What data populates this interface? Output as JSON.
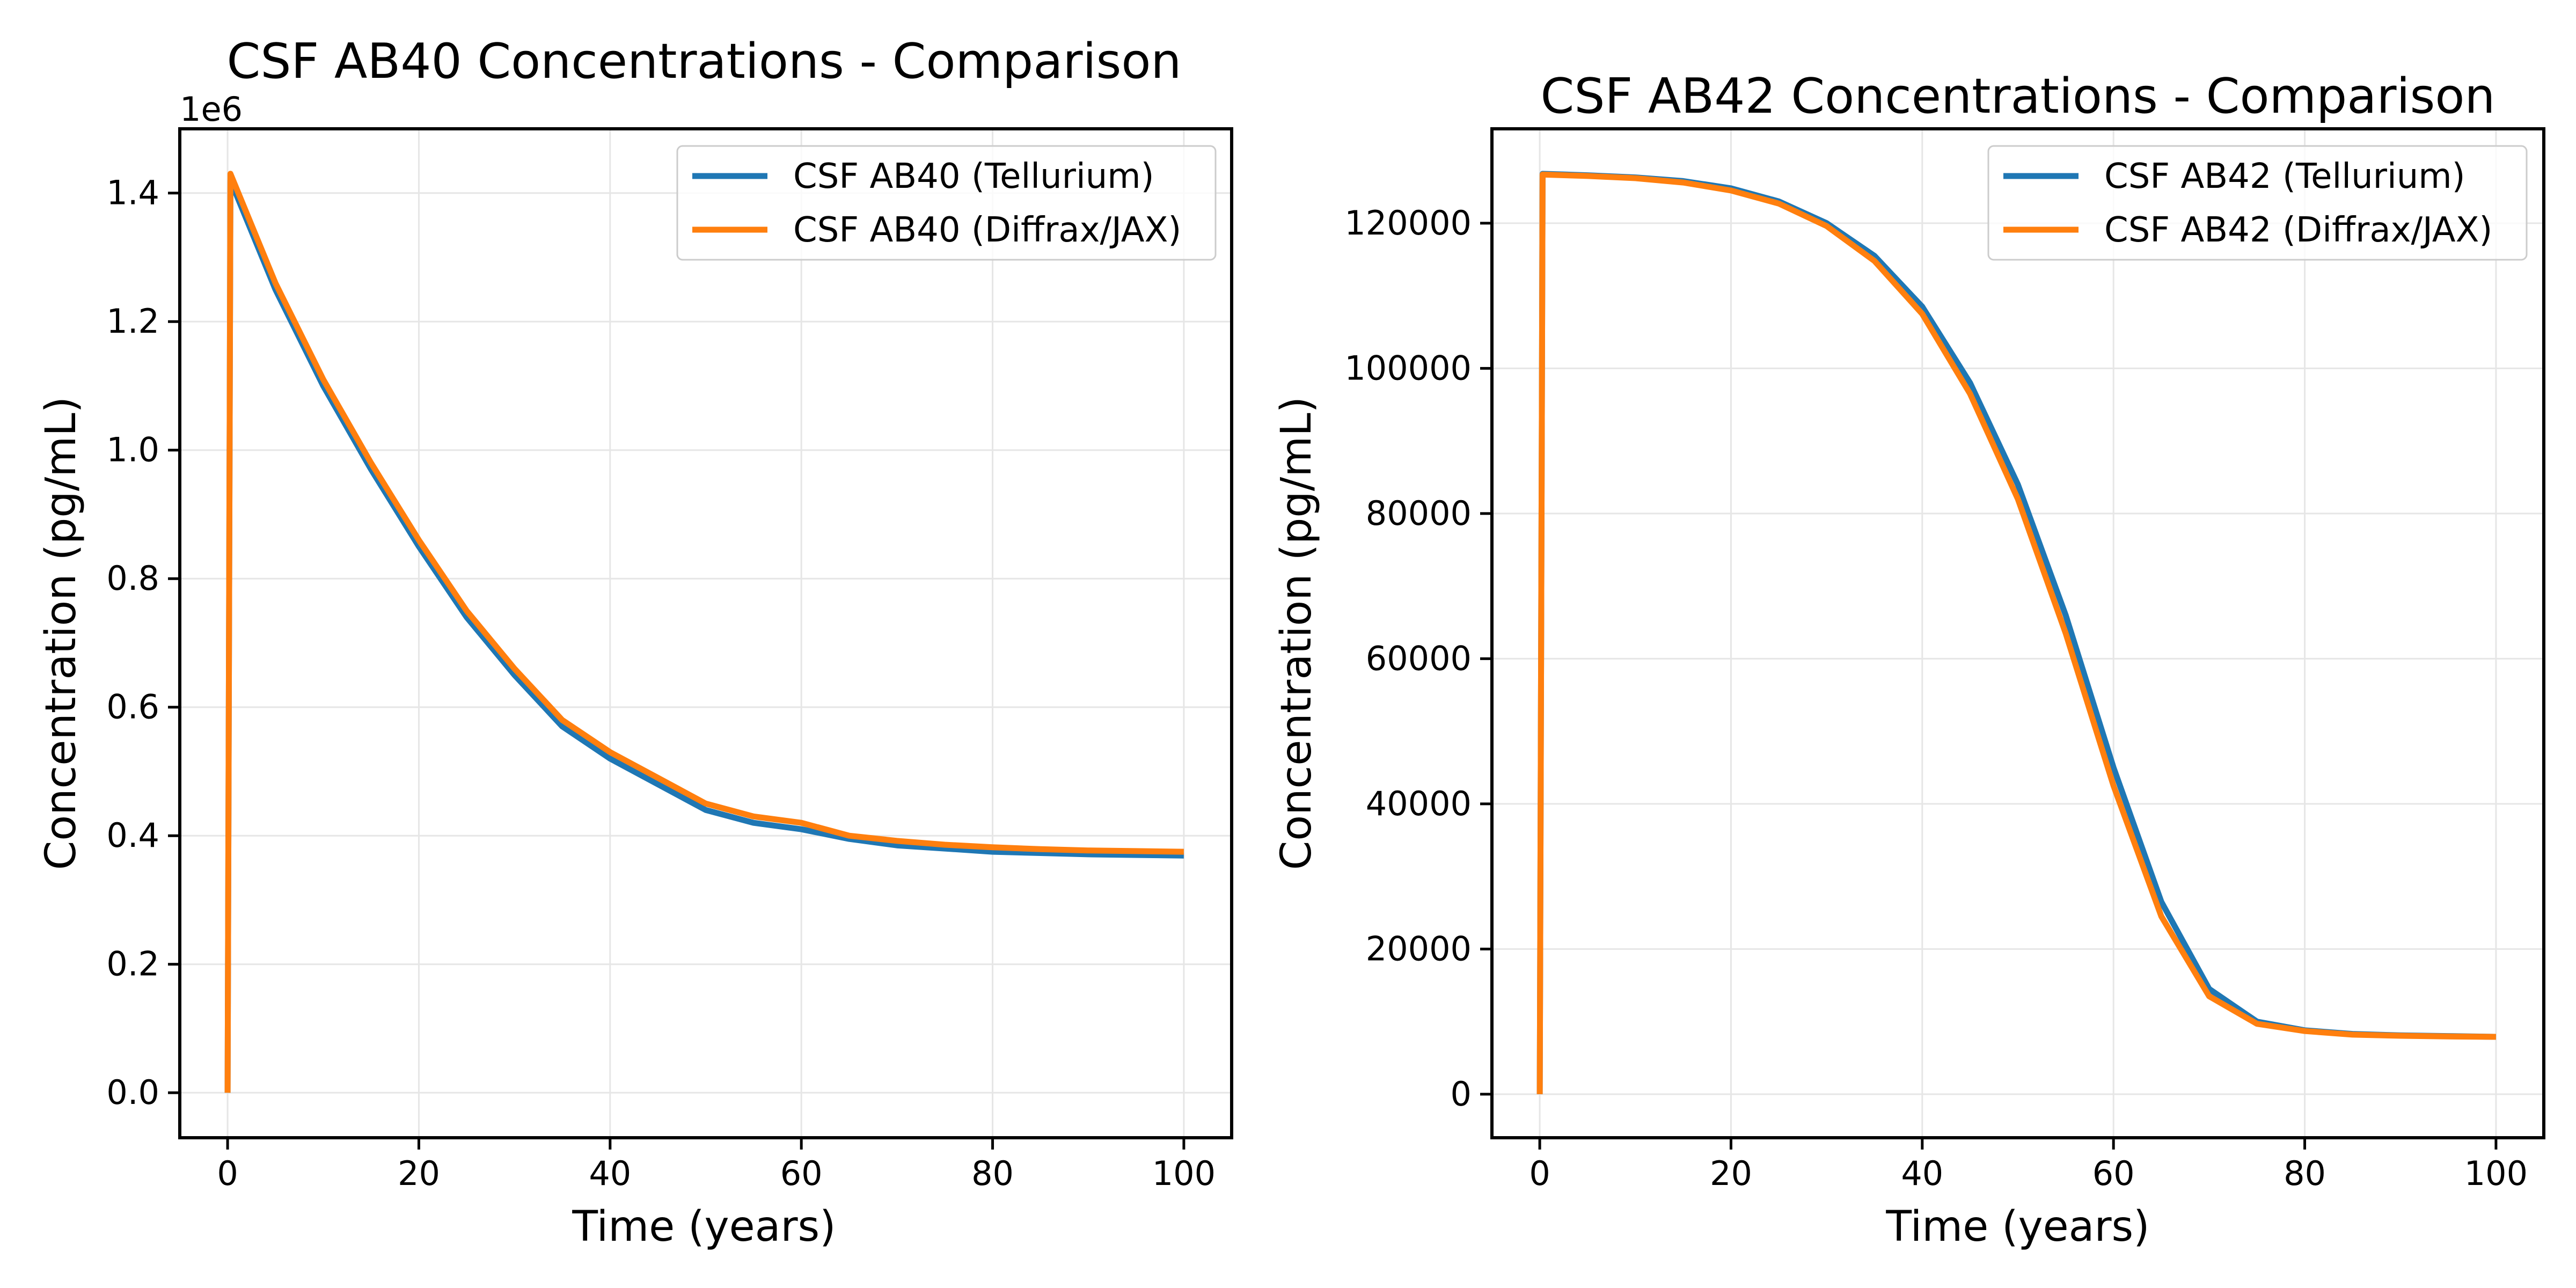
{
  "colors": {
    "tellurium": "#1f77b4",
    "diffrax": "#ff7f0e",
    "grid": "#e6e6e6",
    "axes": "#000000"
  },
  "chart_data": [
    {
      "type": "line",
      "title": "CSF AB40 Concentrations - Comparison",
      "xlabel": "Time (years)",
      "ylabel": "Concentration (pg/mL)",
      "offset_label": "1e6",
      "xlim": [
        -5,
        105
      ],
      "ylim": [
        -0.07,
        1.5
      ],
      "grid": true,
      "legend_placement": "top-right",
      "xticks": [
        0,
        20,
        40,
        60,
        80,
        100
      ],
      "xtick_labels": [
        "0",
        "20",
        "40",
        "60",
        "80",
        "100"
      ],
      "yticks": [
        0.0,
        0.2,
        0.4,
        0.6,
        0.8,
        1.0,
        1.2,
        1.4
      ],
      "ytick_labels": [
        "0.0",
        "0.2",
        "0.4",
        "0.6",
        "0.8",
        "1.0",
        "1.2",
        "1.4"
      ],
      "series": [
        {
          "name": "CSF AB40 (Tellurium)",
          "color": "#1f77b4",
          "x": [
            0,
            0.3,
            5,
            10,
            15,
            20,
            25,
            30,
            35,
            40,
            45,
            50,
            55,
            60,
            65,
            70,
            75,
            80,
            85,
            90,
            95,
            100
          ],
          "y": [
            0,
            1.42,
            1.25,
            1.1,
            0.97,
            0.85,
            0.74,
            0.65,
            0.57,
            0.52,
            0.48,
            0.44,
            0.42,
            0.41,
            0.395,
            0.385,
            0.38,
            0.375,
            0.373,
            0.371,
            0.37,
            0.369
          ]
        },
        {
          "name": "CSF AB40 (Diffrax/JAX)",
          "color": "#ff7f0e",
          "x": [
            0,
            0.3,
            5,
            10,
            15,
            20,
            25,
            30,
            35,
            40,
            45,
            50,
            55,
            60,
            65,
            70,
            75,
            80,
            85,
            90,
            95,
            100
          ],
          "y": [
            0,
            1.43,
            1.26,
            1.11,
            0.98,
            0.86,
            0.75,
            0.66,
            0.58,
            0.53,
            0.49,
            0.45,
            0.43,
            0.42,
            0.4,
            0.392,
            0.386,
            0.382,
            0.379,
            0.377,
            0.376,
            0.375
          ]
        }
      ]
    },
    {
      "type": "line",
      "title": "CSF AB42 Concentrations - Comparison",
      "xlabel": "Time (years)",
      "ylabel": "Concentration (pg/mL)",
      "xlim": [
        -5,
        105
      ],
      "ylim": [
        -6000,
        133000
      ],
      "grid": true,
      "legend_placement": "top-right",
      "xticks": [
        0,
        20,
        40,
        60,
        80,
        100
      ],
      "xtick_labels": [
        "0",
        "20",
        "40",
        "60",
        "80",
        "100"
      ],
      "yticks": [
        0,
        20000,
        40000,
        60000,
        80000,
        100000,
        120000
      ],
      "ytick_labels": [
        "0",
        "20000",
        "40000",
        "60000",
        "80000",
        "100000",
        "120000"
      ],
      "series": [
        {
          "name": "CSF AB42 (Tellurium)",
          "color": "#1f77b4",
          "x": [
            0,
            0.3,
            5,
            10,
            15,
            20,
            25,
            30,
            35,
            40,
            45,
            50,
            55,
            60,
            65,
            70,
            75,
            80,
            85,
            90,
            95,
            100
          ],
          "y": [
            0,
            126800,
            126600,
            126300,
            125800,
            124800,
            123000,
            120000,
            115500,
            108500,
            98000,
            84000,
            66000,
            45000,
            26500,
            14500,
            10000,
            8800,
            8300,
            8100,
            8000,
            7900
          ]
        },
        {
          "name": "CSF AB42 (Diffrax/JAX)",
          "color": "#ff7f0e",
          "x": [
            0,
            0.3,
            5,
            10,
            15,
            20,
            25,
            30,
            35,
            40,
            45,
            50,
            55,
            60,
            65,
            70,
            75,
            80,
            85,
            90,
            95,
            100
          ],
          "y": [
            0,
            126700,
            126500,
            126200,
            125600,
            124500,
            122700,
            119600,
            114800,
            107500,
            96500,
            82000,
            63500,
            42500,
            24500,
            13500,
            9700,
            8700,
            8200,
            8050,
            7950,
            7900
          ]
        }
      ]
    }
  ]
}
